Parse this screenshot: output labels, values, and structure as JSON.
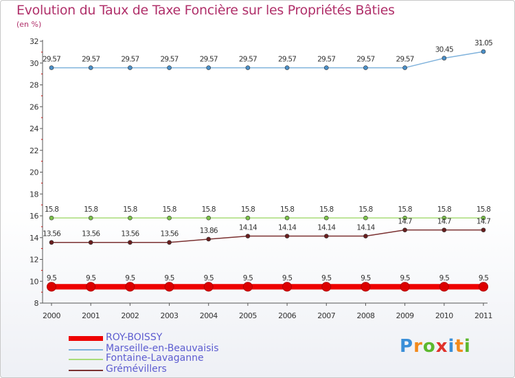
{
  "title": "Evolution du Taux de Taxe Foncière sur les Propriétés Bâties",
  "unit_label": "(en %)",
  "logo": [
    "P",
    "r",
    "o",
    "x",
    "i",
    "t",
    "i"
  ],
  "logo_colors": [
    "#3a8fd8",
    "#f28a1c",
    "#5cb82e",
    "#e0312a",
    "#3a8fd8",
    "#f28a1c",
    "#5cb82e"
  ],
  "chart_data": {
    "type": "line",
    "title": "Evolution du Taux de Taxe Foncière sur les Propriétés Bâties",
    "ylabel": "(en %)",
    "x": [
      "2000",
      "2001",
      "2002",
      "2003",
      "2004",
      "2005",
      "2006",
      "2007",
      "2008",
      "2009",
      "2010",
      "2011"
    ],
    "ylim": [
      8,
      32
    ],
    "yticks": [
      8,
      10,
      12,
      14,
      16,
      18,
      20,
      22,
      24,
      26,
      28,
      30,
      32
    ],
    "grid": false,
    "legend_position": "bottom",
    "series": [
      {
        "name": "ROY-BOISSY",
        "color": "#ee0000",
        "point_color": "#dd0000",
        "thick": true,
        "values": [
          9.5,
          9.5,
          9.5,
          9.5,
          9.5,
          9.5,
          9.5,
          9.5,
          9.5,
          9.5,
          9.5,
          9.5
        ],
        "labels": [
          "9.5",
          "9.5",
          "9.5",
          "9.5",
          "9.5",
          "9.5",
          "9.5",
          "9.5",
          "9.5",
          "9.5",
          "9.5",
          "9.5"
        ]
      },
      {
        "name": "Marseille-en-Beauvaisis",
        "color": "#7fb2dc",
        "point_color": "#4a8fc8",
        "thick": false,
        "values": [
          29.57,
          29.57,
          29.57,
          29.57,
          29.57,
          29.57,
          29.57,
          29.57,
          29.57,
          29.57,
          30.45,
          31.05
        ],
        "labels": [
          "29.57",
          "29.57",
          "29.57",
          "29.57",
          "29.57",
          "29.57",
          "29.57",
          "29.57",
          "29.57",
          "29.57",
          "30.45",
          "31.05"
        ]
      },
      {
        "name": "Fontaine-Lavaganne",
        "color": "#a8dc78",
        "point_color": "#7cc24a",
        "thick": false,
        "values": [
          15.8,
          15.8,
          15.8,
          15.8,
          15.8,
          15.8,
          15.8,
          15.8,
          15.8,
          15.8,
          15.8,
          15.8
        ],
        "labels": [
          "15.8",
          "15.8",
          "15.8",
          "15.8",
          "15.8",
          "15.8",
          "15.8",
          "15.8",
          "15.8",
          "15.8",
          "15.8",
          "15.8"
        ]
      },
      {
        "name": "Grémévillers",
        "color": "#7a3030",
        "point_color": "#6a1e1e",
        "thick": false,
        "values": [
          13.56,
          13.56,
          13.56,
          13.56,
          13.86,
          14.14,
          14.14,
          14.14,
          14.14,
          14.7,
          14.7,
          14.7
        ],
        "labels": [
          "13.56",
          "13.56",
          "13.56",
          "13.56",
          "13.86",
          "14.14",
          "14.14",
          "14.14",
          "14.14",
          "14.7",
          "14.7",
          "14.7"
        ]
      }
    ]
  }
}
